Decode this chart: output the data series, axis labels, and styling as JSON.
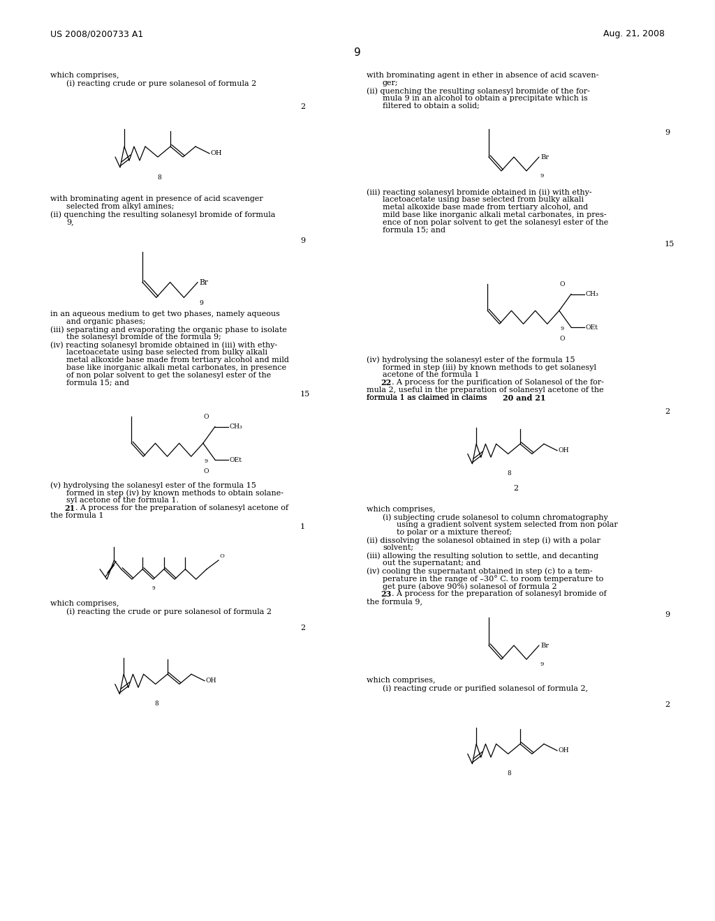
{
  "background_color": "#ffffff",
  "page_number": "9",
  "header_left": "US 2008/0200733 A1",
  "header_right": "Aug. 21, 2008",
  "figsize": [
    10.24,
    13.2
  ],
  "dpi": 100
}
